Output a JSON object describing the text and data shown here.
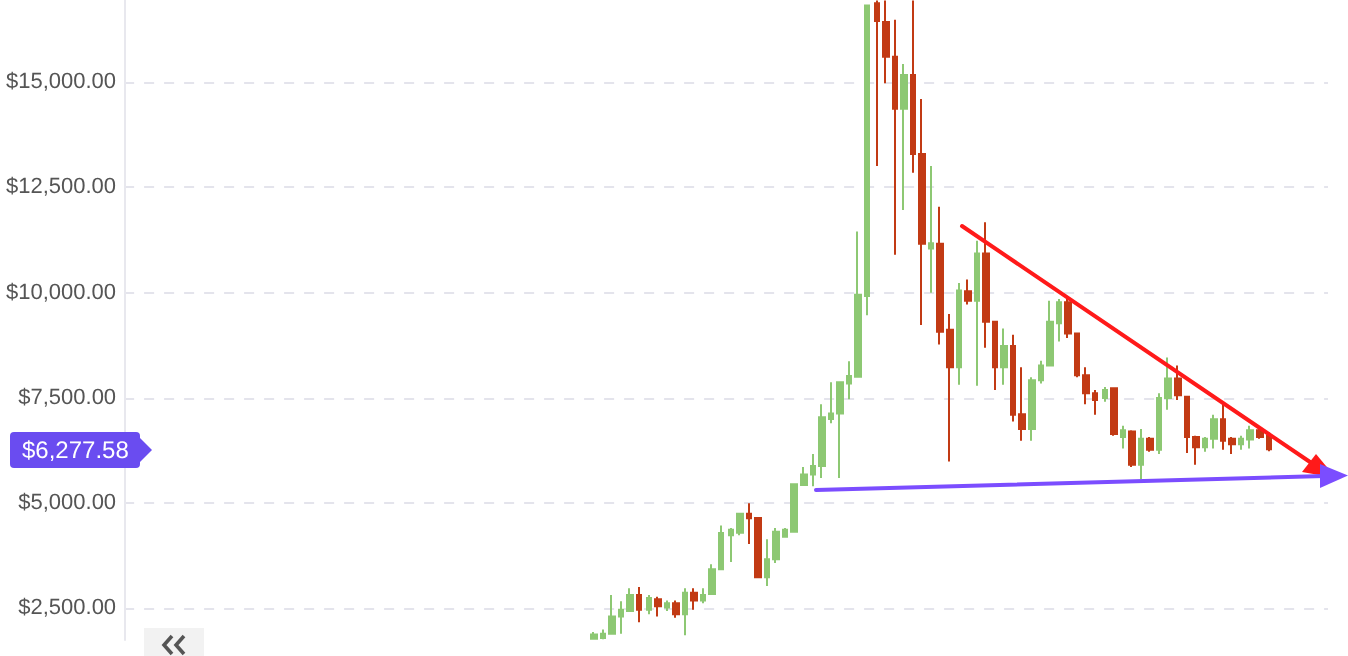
{
  "chart_data": {
    "type": "candlestick",
    "grid": "y",
    "categories": [
      null,
      null,
      null,
      null,
      null,
      null,
      null,
      null,
      null,
      null,
      null,
      null,
      null,
      null,
      null,
      null,
      null,
      null,
      null,
      null,
      null,
      null,
      null,
      null,
      null,
      null,
      null,
      null,
      null,
      null,
      null,
      null,
      null,
      null,
      null,
      null,
      null,
      null,
      null,
      null,
      null,
      null,
      null,
      null,
      null,
      null,
      null,
      null,
      null,
      null,
      null,
      null,
      null,
      null,
      null,
      null,
      null,
      null,
      null,
      null,
      null,
      null,
      null,
      null,
      null,
      null,
      null,
      null,
      null,
      null,
      null,
      null,
      null,
      null,
      null,
      null,
      null,
      null,
      null,
      null,
      null,
      null,
      null,
      null,
      null,
      null,
      null,
      null,
      null,
      null,
      null,
      null,
      null,
      null,
      null,
      null,
      null,
      null,
      null,
      null,
      null,
      null,
      null,
      null,
      null,
      null,
      null,
      null,
      null,
      null,
      null,
      null,
      null,
      null,
      null,
      null,
      null,
      null,
      null,
      null,
      null,
      null,
      null,
      null,
      null,
      null,
      null,
      null,
      null,
      null,
      null,
      null
    ],
    "ylim": [
      1750,
      16950
    ],
    "yticks": [
      {
        "value": 2500,
        "label": "$2,500.00"
      },
      {
        "value": 5000,
        "label": "$5,000.00"
      },
      {
        "value": 7500,
        "label": "$7,500.00"
      },
      {
        "value": 10000,
        "label": "$10,000.00"
      },
      {
        "value": 12500,
        "label": "$12,500.00"
      },
      {
        "value": 15000,
        "label": "$15,000.00"
      }
    ],
    "annotations": [
      "$6,277.58"
    ],
    "series": [
      {
        "colors": [
          null,
          null,
          null,
          null,
          null,
          null,
          null,
          null,
          null,
          null,
          null,
          null,
          null,
          null,
          null,
          null,
          null,
          null,
          null,
          null,
          null,
          null,
          null,
          null,
          null,
          null,
          null,
          null,
          null,
          null,
          null,
          null,
          null,
          null,
          null,
          null,
          null,
          null,
          null,
          null,
          null,
          null,
          null,
          null,
          null,
          null,
          null,
          null,
          null,
          null,
          null,
          "#8dc873",
          "#8dc873",
          "#8dc873",
          "#8dc873",
          "#8dc873",
          "#c23a14",
          "#8dc873",
          "#c23a14",
          "#8dc873",
          "#c23a14",
          "#8dc873",
          "#c23a14",
          "#8dc873",
          "#8dc873",
          "#8dc873",
          "#8dc873",
          "#8dc873",
          "#c23a14",
          "#c23a14",
          "#8dc873",
          "#8dc873",
          "#8dc873",
          "#8dc873",
          "#8dc873",
          "#8dc873",
          "#8dc873",
          "#8dc873",
          "#8dc873",
          "#8dc873",
          "#8dc873",
          "#8dc873",
          "#c23a14",
          "#c23a14",
          "#c23a14",
          "#8dc873",
          "#c23a14",
          "#c23a14",
          "#8dc873",
          "#c23a14",
          "#c23a14",
          "#8dc873",
          "#c23a14",
          "#8dc873",
          "#c23a14",
          "#c23a14",
          "#8dc873",
          "#c23a14",
          "#c23a14",
          "#8dc873",
          "#8dc873",
          "#8dc873",
          "#8dc873",
          "#c23a14",
          "#c23a14",
          "#c23a14",
          "#c23a14",
          "#8dc873",
          "#c23a14",
          "#8dc873",
          "#c23a14",
          "#8dc873",
          "#c23a14",
          "#8dc873",
          "#8dc873",
          "#c23a14",
          "#c23a14",
          "#c23a14",
          "#8dc873",
          "#8dc873",
          "#c23a14",
          "#c23a14",
          "#8dc873",
          "#8dc873",
          "#c23a14",
          "#c23a14",
          null,
          null,
          null,
          null,
          null,
          null
        ],
        "ohlc": [
          null,
          null,
          null,
          null,
          null,
          null,
          null,
          null,
          null,
          null,
          null,
          null,
          null,
          null,
          null,
          null,
          null,
          null,
          null,
          null,
          null,
          null,
          null,
          null,
          null,
          null,
          null,
          null,
          null,
          null,
          null,
          null,
          null,
          null,
          null,
          null,
          null,
          null,
          null,
          null,
          null,
          null,
          null,
          null,
          null,
          null,
          null,
          null,
          null,
          null,
          null,
          [
            1780,
            1940,
            1760,
            1880
          ],
          [
            1800,
            2000,
            1770,
            1900
          ],
          [
            1900,
            2820,
            1900,
            2310
          ],
          [
            2310,
            2670,
            1900,
            2470
          ],
          [
            2440,
            2980,
            2440,
            2820
          ],
          [
            2820,
            3010,
            2170,
            2470
          ],
          [
            2470,
            2820,
            2360,
            2750
          ],
          [
            2720,
            2780,
            2310,
            2550
          ],
          [
            2520,
            2690,
            2440,
            2620
          ],
          [
            2620,
            2690,
            2280,
            2360
          ],
          [
            2360,
            2980,
            1860,
            2870
          ],
          [
            2870,
            2980,
            2470,
            2690
          ],
          [
            2690,
            2980,
            2620,
            2820
          ],
          [
            2840,
            3550,
            2840,
            3430
          ],
          [
            3430,
            4470,
            3430,
            4290
          ],
          [
            4240,
            4410,
            3600,
            4370
          ],
          [
            4300,
            4770,
            4240,
            4750
          ],
          [
            4750,
            5000,
            4030,
            4640
          ],
          [
            4650,
            4650,
            3240,
            3240
          ],
          [
            3240,
            4140,
            3030,
            3670
          ],
          [
            3670,
            4410,
            3580,
            4320
          ],
          [
            4200,
            4410,
            4200,
            4370
          ],
          [
            4320,
            5450,
            4320,
            5450
          ],
          [
            5430,
            5860,
            5430,
            5680
          ],
          [
            5680,
            6170,
            5400,
            5880
          ],
          [
            5880,
            7350,
            5600,
            7040
          ],
          [
            7000,
            7870,
            6900,
            7130
          ],
          [
            7130,
            7890,
            5600,
            7870
          ],
          [
            7840,
            8370,
            7470,
            8020
          ],
          [
            8000,
            11450,
            8000,
            9950
          ],
          [
            9920,
            16820,
            9460,
            16820
          ],
          [
            16870,
            16940,
            13010,
            16450
          ],
          [
            16430,
            16940,
            14970,
            15600
          ],
          [
            15600,
            16480,
            10900,
            14370
          ],
          [
            14370,
            15430,
            11960,
            15170
          ],
          [
            15170,
            16940,
            12850,
            13290
          ],
          [
            13290,
            14600,
            9230,
            11160
          ],
          [
            11050,
            13010,
            10000,
            11170
          ],
          [
            11160,
            12040,
            8770,
            9070
          ],
          [
            9120,
            9490,
            5990,
            8230
          ],
          [
            8230,
            10230,
            7810,
            10050
          ],
          [
            10030,
            10310,
            9720,
            9810
          ],
          [
            9810,
            11230,
            7790,
            10930
          ],
          [
            10930,
            11670,
            8690,
            9310
          ],
          [
            9310,
            9310,
            7690,
            8230
          ],
          [
            8230,
            9150,
            7810,
            8730
          ],
          [
            8730,
            9000,
            6940,
            7100
          ],
          [
            7110,
            8230,
            6480,
            6760
          ],
          [
            6760,
            7990,
            6480,
            7920
          ],
          [
            7920,
            8380,
            7840,
            8270
          ],
          [
            8270,
            9810,
            8270,
            9310
          ],
          [
            9270,
            9850,
            8840,
            9770
          ],
          [
            9770,
            9880,
            8920,
            9030
          ],
          [
            9030,
            9030,
            7990,
            8040
          ],
          [
            8040,
            8230,
            7350,
            7610
          ],
          [
            7610,
            7690,
            7100,
            7450
          ],
          [
            7500,
            7760,
            7410,
            7690
          ],
          [
            7730,
            7730,
            6600,
            6640
          ],
          [
            6570,
            6840,
            6300,
            6730
          ],
          [
            6700,
            6730,
            5860,
            5910
          ],
          [
            5910,
            6760,
            5570,
            6530
          ],
          [
            6530,
            6570,
            6220,
            6270
          ],
          [
            6270,
            7610,
            6170,
            7500
          ],
          [
            7500,
            8460,
            7220,
            7960
          ],
          [
            7960,
            8270,
            7450,
            7560
          ],
          [
            7530,
            7530,
            6190,
            6570
          ],
          [
            6570,
            6600,
            5910,
            6330
          ],
          [
            6330,
            6570,
            6220,
            6530
          ],
          [
            6530,
            7100,
            6300,
            6990
          ],
          [
            6990,
            7410,
            6270,
            6480
          ],
          [
            6530,
            6570,
            6170,
            6400
          ],
          [
            6400,
            6600,
            6270,
            6530
          ],
          [
            6510,
            6840,
            6300,
            6730
          ],
          [
            6730,
            6820,
            6530,
            6570
          ],
          [
            6600,
            6680,
            6230,
            6277.58
          ],
          null,
          null,
          null,
          null,
          null,
          null
        ]
      }
    ]
  }
}
